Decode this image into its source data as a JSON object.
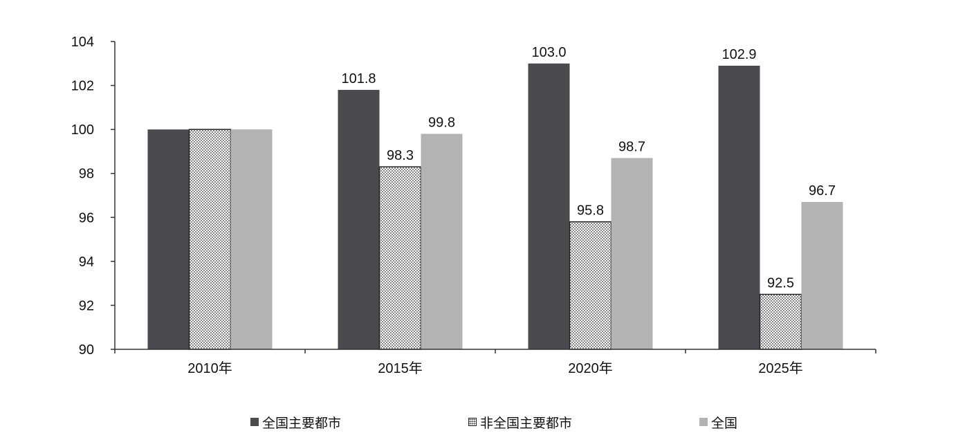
{
  "chart_data": {
    "type": "bar",
    "categories": [
      "2010年",
      "2015年",
      "2020年",
      "2025年"
    ],
    "series": [
      {
        "name": "全国主要都市",
        "values": [
          100.0,
          101.8,
          103.0,
          102.9
        ],
        "labels": [
          "",
          "101.8",
          "103.0",
          "102.9"
        ],
        "color": "#4a4a4f",
        "pattern": "solid"
      },
      {
        "name": "非全国主要都市",
        "values": [
          100.0,
          98.3,
          95.8,
          92.5
        ],
        "labels": [
          "",
          "98.3",
          "95.8",
          "92.5"
        ],
        "color": "#ffffff",
        "pattern": "dotted"
      },
      {
        "name": "全国",
        "values": [
          100.0,
          99.8,
          98.7,
          96.7
        ],
        "labels": [
          "",
          "99.8",
          "98.7",
          "96.7"
        ],
        "color": "#b3b3b3",
        "pattern": "solid"
      }
    ],
    "ylim": [
      90,
      104
    ],
    "yticks": [
      90,
      92,
      94,
      96,
      98,
      100,
      102,
      104
    ],
    "ytick_labels": [
      "90",
      "92",
      "94",
      "96",
      "98",
      "100",
      "102",
      "104"
    ],
    "title": "",
    "xlabel": "",
    "ylabel": "",
    "grid": false,
    "legend_position": "bottom"
  }
}
